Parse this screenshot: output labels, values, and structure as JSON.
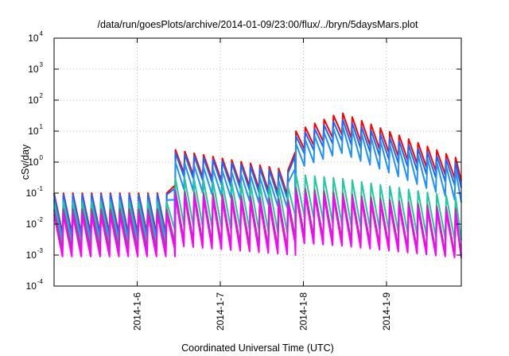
{
  "chart_data": {
    "type": "line",
    "title": "/data/run/goesPlots/archive/2014-01-09/23:00/flux/../bryn/5daysMars.plot",
    "xlabel": "Coordinated Universal Time (UTC)",
    "ylabel": "cSv/day",
    "y_scale": "log",
    "ylim": [
      0.0001,
      10000
    ],
    "y_ticks": [
      {
        "base": "10",
        "exp": "-4"
      },
      {
        "base": "10",
        "exp": "-3"
      },
      {
        "base": "10",
        "exp": "-2"
      },
      {
        "base": "10",
        "exp": "-1"
      },
      {
        "base": "10",
        "exp": "0"
      },
      {
        "base": "10",
        "exp": "1"
      },
      {
        "base": "10",
        "exp": "2"
      },
      {
        "base": "10",
        "exp": "3"
      },
      {
        "base": "10",
        "exp": "4"
      }
    ],
    "xlim": [
      "2014-01-05 02:00",
      "2014-01-10 00:00"
    ],
    "x_ticks": [
      "2014-1-6",
      "2014-1-7",
      "2014-1-8",
      "2014-1-9"
    ],
    "x_tick_days": [
      1,
      2,
      3,
      4
    ],
    "grid": true,
    "legend": "none",
    "series": [
      {
        "color": "#ff0000",
        "values": [
          {
            "day": 0.0,
            "high": 0.1,
            "low": 0.005
          },
          {
            "day": 1.45,
            "high": 0.1,
            "low": 0.005
          },
          {
            "day": 1.46,
            "high": 2.5,
            "low": 0.5
          },
          {
            "day": 2.9,
            "high": 0.5,
            "low": 0.08
          },
          {
            "day": 2.91,
            "high": 10,
            "low": 2
          },
          {
            "day": 3.45,
            "high": 40,
            "low": 8
          },
          {
            "day": 4.9,
            "high": 1.2,
            "low": 0.25
          }
        ]
      },
      {
        "color": "#1c64ff",
        "values": [
          {
            "day": 0.0,
            "high": 0.09,
            "low": 0.004
          },
          {
            "day": 1.45,
            "high": 0.09,
            "low": 0.004
          },
          {
            "day": 1.46,
            "high": 2.0,
            "low": 0.4
          },
          {
            "day": 2.9,
            "high": 0.4,
            "low": 0.06
          },
          {
            "day": 2.91,
            "high": 7,
            "low": 1.5
          },
          {
            "day": 3.45,
            "high": 25,
            "low": 5
          },
          {
            "day": 4.9,
            "high": 0.8,
            "low": 0.15
          }
        ]
      },
      {
        "color": "#1e90ff",
        "values": [
          {
            "day": 0.0,
            "high": 0.06,
            "low": 0.003
          },
          {
            "day": 1.45,
            "high": 0.06,
            "low": 0.003
          },
          {
            "day": 1.46,
            "high": 1.0,
            "low": 0.15
          },
          {
            "day": 2.9,
            "high": 0.2,
            "low": 0.03
          },
          {
            "day": 2.91,
            "high": 4,
            "low": 0.6
          },
          {
            "day": 3.45,
            "high": 15,
            "low": 2
          },
          {
            "day": 4.9,
            "high": 0.5,
            "low": 0.05
          }
        ]
      },
      {
        "color": "#20c8a0",
        "values": [
          {
            "day": 0.0,
            "high": 0.05,
            "low": 0.002
          },
          {
            "day": 1.45,
            "high": 0.05,
            "low": 0.002
          },
          {
            "day": 1.46,
            "high": 0.3,
            "low": 0.01
          },
          {
            "day": 2.9,
            "high": 0.15,
            "low": 0.005
          },
          {
            "day": 2.91,
            "high": 0.4,
            "low": 0.02
          },
          {
            "day": 3.45,
            "high": 0.3,
            "low": 0.01
          },
          {
            "day": 4.9,
            "high": 0.07,
            "low": 0.003
          }
        ]
      },
      {
        "color": "#a040a0",
        "values": [
          {
            "day": 0.0,
            "high": 0.03,
            "low": 0.0015
          },
          {
            "day": 1.45,
            "high": 0.03,
            "low": 0.0015
          },
          {
            "day": 1.46,
            "high": 0.12,
            "low": 0.003
          },
          {
            "day": 2.9,
            "high": 0.06,
            "low": 0.0015
          },
          {
            "day": 2.91,
            "high": 0.15,
            "low": 0.004
          },
          {
            "day": 3.45,
            "high": 0.1,
            "low": 0.003
          },
          {
            "day": 4.9,
            "high": 0.03,
            "low": 0.001
          }
        ]
      },
      {
        "color": "#ff00ff",
        "values": [
          {
            "day": 0.0,
            "high": 0.02,
            "low": 0.0009
          },
          {
            "day": 1.45,
            "high": 0.02,
            "low": 0.0009
          },
          {
            "day": 1.46,
            "high": 0.08,
            "low": 0.002
          },
          {
            "day": 2.9,
            "high": 0.04,
            "low": 0.001
          },
          {
            "day": 2.91,
            "high": 0.1,
            "low": 0.0025
          },
          {
            "day": 3.45,
            "high": 0.07,
            "low": 0.002
          },
          {
            "day": 4.9,
            "high": 0.02,
            "low": 0.0008
          }
        ]
      }
    ]
  }
}
